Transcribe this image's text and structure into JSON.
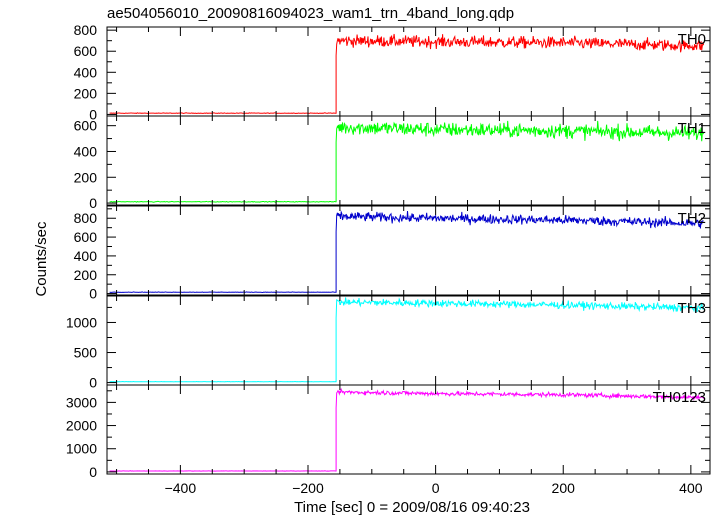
{
  "chart_data": {
    "type": "line",
    "title": "ae504056010_20090816094023_wam1_trn_4band_long.qdp",
    "xlabel": "Time [sec] 0 = 2009/08/16 09:40:23",
    "ylabel": "Counts/sec",
    "xlim": [
      -515,
      430
    ],
    "xticks": [
      -400,
      -200,
      0,
      200,
      400
    ],
    "xtick_labels": [
      "−400",
      "−200",
      "0",
      "200",
      "400"
    ],
    "onset_time": -156,
    "panels": [
      {
        "name": "TH0",
        "color": "#ff0000",
        "ylim": [
          -15,
          830
        ],
        "yticks": [
          0,
          200,
          400,
          600,
          800
        ],
        "yticklabels": [
          "0",
          "200",
          "400",
          "600",
          "800"
        ],
        "pre_level": 12,
        "post_points": [
          [
            -156,
            700
          ],
          [
            0,
            690
          ],
          [
            200,
            680
          ],
          [
            420,
            650
          ]
        ],
        "noise": 28
      },
      {
        "name": "TH1",
        "color": "#00ff00",
        "ylim": [
          -15,
          675
        ],
        "yticks": [
          0,
          200,
          400,
          600
        ],
        "yticklabels": [
          "0",
          "200",
          "400",
          "600"
        ],
        "pre_level": 10,
        "post_points": [
          [
            -156,
            590
          ],
          [
            0,
            570
          ],
          [
            200,
            560
          ],
          [
            420,
            540
          ]
        ],
        "noise": 28
      },
      {
        "name": "TH2",
        "color": "#0000cc",
        "ylim": [
          -15,
          930
        ],
        "yticks": [
          0,
          200,
          400,
          600,
          800
        ],
        "yticklabels": [
          "0",
          "200",
          "400",
          "600",
          "800"
        ],
        "pre_level": 15,
        "post_points": [
          [
            -156,
            820
          ],
          [
            0,
            800
          ],
          [
            200,
            780
          ],
          [
            420,
            745
          ]
        ],
        "noise": 25
      },
      {
        "name": "TH3",
        "color": "#00ffff",
        "ylim": [
          -40,
          1440
        ],
        "yticks": [
          0,
          500,
          1000
        ],
        "yticklabels": [
          "0",
          "500",
          "1000"
        ],
        "pre_level": 15,
        "post_points": [
          [
            -156,
            1340
          ],
          [
            0,
            1320
          ],
          [
            200,
            1290
          ],
          [
            420,
            1240
          ]
        ],
        "noise": 30
      },
      {
        "name": "TH0123",
        "color": "#ff00ff",
        "ylim": [
          -90,
          3750
        ],
        "yticks": [
          0,
          1000,
          2000,
          3000
        ],
        "yticklabels": [
          "0",
          "1000",
          "2000",
          "3000"
        ],
        "pre_level": 40,
        "post_points": [
          [
            -156,
            3450
          ],
          [
            0,
            3380
          ],
          [
            200,
            3330
          ],
          [
            420,
            3210
          ]
        ],
        "noise": 45
      }
    ]
  }
}
